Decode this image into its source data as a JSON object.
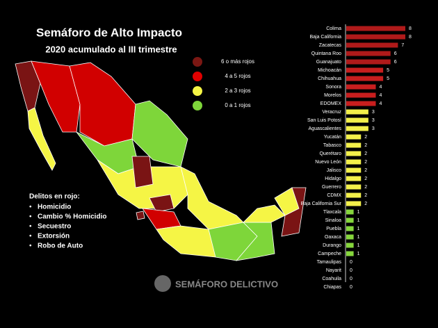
{
  "chart_data": {
    "type": "bar",
    "orientation": "horizontal",
    "title": "Semáforo de Alto Impacto",
    "subtitle": "2020 acumulado al III trimestre",
    "categories": [
      "Colima",
      "Baja California",
      "Zacatecas",
      "Quintana Roo",
      "Guanajuato",
      "Michoacán",
      "Chihuahua",
      "Sonora",
      "Morelos",
      "EDOMEX",
      "Veracruz",
      "San Luis Potosí",
      "Aguascalientes",
      "Yucatán",
      "Tabasco",
      "Querétaro",
      "Nuevo León",
      "Jalisco",
      "Hidalgo",
      "Guerrero",
      "CDMX",
      "Baja California Sur",
      "Tlaxcala",
      "Sinaloa",
      "Puebla",
      "Oaxaca",
      "Durango",
      "Campeche",
      "Tamaulipas",
      "Nayarit",
      "Coahuila",
      "Chiapas"
    ],
    "values": [
      8,
      8,
      7,
      6,
      6,
      5,
      5,
      4,
      4,
      4,
      3,
      3,
      3,
      2,
      2,
      2,
      2,
      2,
      2,
      2,
      2,
      2,
      1,
      1,
      1,
      1,
      1,
      1,
      0,
      0,
      0,
      0
    ],
    "colors": [
      "#b01a1a",
      "#b01a1a",
      "#b01a1a",
      "#b01a1a",
      "#b01a1a",
      "#c81e1e",
      "#c81e1e",
      "#c81e1e",
      "#c81e1e",
      "#c81e1e",
      "#f3f04a",
      "#f3f04a",
      "#f3f04a",
      "#f3f04a",
      "#f3f04a",
      "#f3f04a",
      "#f3f04a",
      "#f3f04a",
      "#f3f04a",
      "#f3f04a",
      "#f3f04a",
      "#f3f04a",
      "#86d63c",
      "#86d63c",
      "#86d63c",
      "#86d63c",
      "#86d63c",
      "#86d63c",
      "#86d63c",
      "#86d63c",
      "#86d63c",
      "#86d63c"
    ],
    "xlim": [
      0,
      8
    ],
    "legend": [
      {
        "label": "6 o más rojos",
        "color": "#7b1713"
      },
      {
        "label": "4 a 5 rojos",
        "color": "#e00000"
      },
      {
        "label": "2 a 3  rojos",
        "color": "#f5f545"
      },
      {
        "label": "0 a 1 rojos",
        "color": "#7ed63a"
      }
    ],
    "notes_title": "Delitos en rojo:",
    "notes": [
      "Homicidio",
      "Cambio % Homicidio",
      "Secuestro",
      "Extorsión",
      "Robo de Auto"
    ],
    "logo": "SEMÁFORO DELICTIVO"
  }
}
